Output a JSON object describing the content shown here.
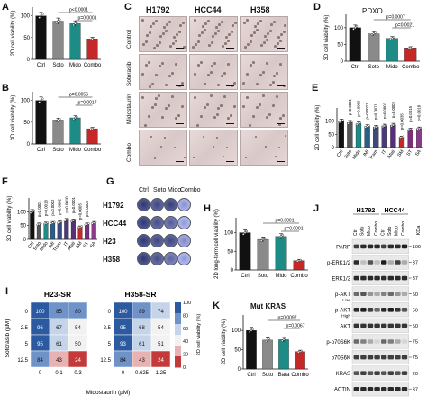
{
  "panels": {
    "A": {
      "label": "A",
      "ylabel": "2D cell viability (%)",
      "yticks": [
        "0",
        "50",
        "100"
      ],
      "categories": [
        "Ctrl",
        "Soto",
        "Mido",
        "Combo"
      ],
      "pvalues": [
        "p<0.0001",
        "p=0.0001"
      ]
    },
    "B": {
      "label": "B",
      "ylabel": "3D cell viability (%)",
      "yticks": [
        "0",
        "50",
        "100"
      ],
      "categories": [
        "Ctrl",
        "Soto",
        "Mido",
        "Combo"
      ],
      "pvalues": [
        "p=0.0056",
        "p=0.0017"
      ]
    },
    "C": {
      "label": "C",
      "columns": [
        "H1792",
        "HCC44",
        "H358"
      ],
      "rows": [
        "Control",
        "Sotorasib",
        "Midostaurin",
        "Combo"
      ]
    },
    "D": {
      "label": "D",
      "title": "PDXO",
      "ylabel": "3D cell viability (%)",
      "yticks": [
        "0",
        "50",
        "100"
      ],
      "categories": [
        "Ctrl",
        "Soto",
        "Mido",
        "Combo"
      ],
      "pvalues": [
        "p=0.0007",
        "p=0.0021"
      ]
    },
    "E": {
      "label": "E",
      "ylabel": "2D cell viability (%)",
      "yticks": [
        "0",
        "50",
        "100"
      ],
      "categories": [
        "Ctrl",
        "Soto",
        "Mido",
        "IMI",
        "Tram",
        "IT",
        "Afati",
        "SM",
        "ST",
        "SA"
      ],
      "pvalues": [
        "p<0.0001",
        "p=0.0009",
        "p=0.0021",
        "p=0.0071",
        "p=0.0003",
        "p=0.0002",
        "p=0.0035",
        "p=0.0015",
        "p=0.0018"
      ]
    },
    "F": {
      "label": "F",
      "ylabel": "3D cell viability (%)",
      "yticks": [
        "0",
        "50",
        "100"
      ],
      "categories": [
        "Ctrl",
        "Soto",
        "Mido",
        "IMI",
        "Tram",
        "IT",
        "Afati",
        "SM",
        "ST",
        "SA"
      ],
      "pvalues": [
        "p=0.0001",
        "p=0.0018",
        "p=0.0002",
        "p=0.0002",
        "p=0.0010",
        "p=0.0001",
        "p=0.0005",
        "p=0.0003"
      ]
    },
    "G": {
      "label": "G",
      "columns": [
        "Ctrl",
        "Soto",
        "Mido",
        "Combo"
      ],
      "rows": [
        "H1792",
        "HCC44",
        "H23",
        "H358"
      ]
    },
    "H": {
      "label": "H",
      "ylabel": "2D long-term cell viability (%)",
      "yticks": [
        "0",
        "50",
        "100"
      ],
      "categories": [
        "Ctrl",
        "Soto",
        "Mido",
        "Combo"
      ],
      "pvalues": [
        "p=0.0001",
        "p=0.0001"
      ]
    },
    "I": {
      "label": "I",
      "titles": [
        "H23-SR",
        "H358-SR"
      ],
      "ylabel": "Sotorasib (µM)",
      "xlabel": "Midostaurin (µM)",
      "colorbar_label": "2D cell viability (%)",
      "colorbar_ticks": [
        "0",
        "20",
        "40",
        "60",
        "80",
        "100"
      ],
      "left": {
        "rows": [
          "0",
          "2.5",
          "5",
          "12.5"
        ],
        "cols": [
          "0",
          "0.1",
          "0.3"
        ],
        "cells": [
          [
            "100",
            "85",
            "80"
          ],
          [
            "96",
            "67",
            "54"
          ],
          [
            "95",
            "61",
            "50"
          ],
          [
            "84",
            "43",
            "24"
          ]
        ]
      },
      "right": {
        "rows": [
          "0",
          "2.5",
          "5",
          "12.5"
        ],
        "cols": [
          "0",
          "0.625",
          "1.25"
        ],
        "cells": [
          [
            "100",
            "89",
            "74"
          ],
          [
            "95",
            "68",
            "54"
          ],
          [
            "93",
            "61",
            "51"
          ],
          [
            "84",
            "43",
            "24"
          ]
        ]
      }
    },
    "J": {
      "label": "J",
      "cell_lines": [
        "H1792",
        "HCC44"
      ],
      "lanes": [
        "Ctrl",
        "Soto",
        "Mido",
        "Combo",
        "Ctrl",
        "Soto",
        "Mido",
        "Combo"
      ],
      "kda_label": "KDa",
      "blots": [
        {
          "name": "PARP",
          "kda": "100"
        },
        {
          "name": "p-ERK1/2",
          "kda": "37"
        },
        {
          "name": "ERK1/2",
          "kda": "37"
        },
        {
          "name": "p-AKT",
          "sub": "Low",
          "kda": "50"
        },
        {
          "name": "p-AKT",
          "sub": "High",
          "kda": "50"
        },
        {
          "name": "AKT",
          "kda": "50"
        },
        {
          "name": "p-p70S6K",
          "kda": "75"
        },
        {
          "name": "p70S6K",
          "kda": "75"
        },
        {
          "name": "KRAS",
          "kda": "20"
        },
        {
          "name": "ACTIN",
          "kda": "37"
        }
      ]
    },
    "K": {
      "label": "K",
      "title": "Mut KRAS",
      "ylabel": "2D cell viability (%)",
      "yticks": [
        "0",
        "50",
        "100"
      ],
      "categories": [
        "Ctrl",
        "Soto",
        "Bara",
        "Combo"
      ],
      "pvalues": [
        "p=0.0097",
        "p=0.0067"
      ]
    }
  },
  "chart_data": [
    {
      "type": "bar",
      "panel": "A",
      "categories": [
        "Ctrl",
        "Soto",
        "Mido",
        "Combo"
      ],
      "values": [
        100,
        88,
        82,
        47
      ],
      "ylabel": "2D cell viability (%)",
      "ylim": [
        0,
        120
      ]
    },
    {
      "type": "bar",
      "panel": "B",
      "categories": [
        "Ctrl",
        "Soto",
        "Mido",
        "Combo"
      ],
      "values": [
        100,
        55,
        60,
        35
      ],
      "ylabel": "3D cell viability (%)",
      "ylim": [
        0,
        120
      ]
    },
    {
      "type": "bar",
      "panel": "D",
      "categories": [
        "Ctrl",
        "Soto",
        "Mido",
        "Combo"
      ],
      "values": [
        100,
        82,
        68,
        40
      ],
      "ylabel": "3D cell viability (%)",
      "ylim": [
        0,
        140
      ]
    },
    {
      "type": "bar",
      "panel": "E",
      "categories": [
        "Ctrl",
        "Soto",
        "Mido",
        "IMI",
        "Tram",
        "IT",
        "Afati",
        "SM",
        "ST",
        "SA"
      ],
      "values": [
        100,
        95,
        90,
        80,
        78,
        82,
        85,
        40,
        68,
        72
      ],
      "ylabel": "2D cell viability (%)",
      "ylim": [
        0,
        150
      ]
    },
    {
      "type": "bar",
      "panel": "F",
      "categories": [
        "Ctrl",
        "Soto",
        "Mido",
        "IMI",
        "Tram",
        "IT",
        "Afati",
        "SM",
        "ST",
        "SA"
      ],
      "values": [
        100,
        55,
        58,
        60,
        62,
        70,
        68,
        45,
        55,
        60
      ],
      "ylabel": "3D cell viability (%)",
      "ylim": [
        0,
        150
      ]
    },
    {
      "type": "bar",
      "panel": "H",
      "categories": [
        "Ctrl",
        "Soto",
        "Mido",
        "Combo"
      ],
      "values": [
        100,
        82,
        90,
        25
      ],
      "ylabel": "2D long-term cell viability (%)",
      "ylim": [
        0,
        140
      ]
    },
    {
      "type": "bar",
      "panel": "K",
      "categories": [
        "Ctrl",
        "Soto",
        "Bara",
        "Combo"
      ],
      "values": [
        100,
        75,
        76,
        45
      ],
      "ylabel": "2D cell viability (%)",
      "ylim": [
        0,
        140
      ]
    }
  ],
  "colors": {
    "ctrl": "#111111",
    "soto": "#8a8a8a",
    "mido": "#1e8c86",
    "combo": "#c62828",
    "e_dark": "#1a2a6e",
    "e_purple": "#6a2d7a",
    "heat_high": "#274b8f",
    "heat_low": "#b3242b"
  }
}
